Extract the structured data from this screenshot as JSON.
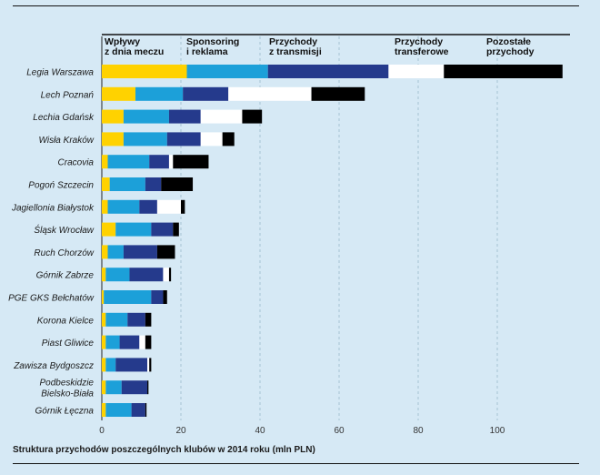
{
  "chart_data": {
    "type": "bar",
    "orientation": "horizontal",
    "stacked": true,
    "title": "Struktura przychodów poszczególnych klubów w 2014 roku (mln PLN)",
    "xlim": [
      0,
      120
    ],
    "xticks": [
      0,
      20,
      40,
      60,
      80,
      100
    ],
    "grid": "vertical dashed",
    "legend_placement": "top",
    "categories": [
      "Legia Warszawa",
      "Lech Poznań",
      "Lechia Gdańsk",
      "Wisła Kraków",
      "Cracovia",
      "Pogoń Szczecin",
      "Jagiellonia Białystok",
      "Śląsk Wrocław",
      "Ruch Chorzów",
      "Górnik Zabrze",
      "PGE GKS Bełchatów",
      "Korona Kielce",
      "Piast Gliwice",
      "Zawisza Bydgoszcz",
      "Podbeskidzie Bielsko-Biała",
      "Górnik Łęczna"
    ],
    "series": [
      {
        "name": "Wpływy z dnia meczu",
        "color": "#ffd200",
        "values": [
          21.5,
          8.5,
          5.5,
          5.5,
          1.5,
          2.0,
          1.5,
          3.5,
          1.5,
          1.0,
          0.5,
          1.0,
          1.0,
          1.0,
          1.0,
          1.0
        ]
      },
      {
        "name": "Sponsoring i reklama",
        "color": "#1ca0d9",
        "values": [
          20.5,
          12.0,
          11.5,
          11.0,
          10.5,
          9.0,
          8.0,
          9.0,
          4.0,
          6.0,
          12.0,
          5.5,
          3.5,
          2.5,
          4.0,
          6.5
        ]
      },
      {
        "name": "Przychody z transmisji",
        "color": "#253a8c",
        "values": [
          30.5,
          11.5,
          8.0,
          8.5,
          5.0,
          4.0,
          4.5,
          5.5,
          8.5,
          8.5,
          3.0,
          4.5,
          5.0,
          8.0,
          6.5,
          3.5
        ]
      },
      {
        "name": "Przychody transferowe",
        "color": "#ffffff",
        "values": [
          14.0,
          21.0,
          10.5,
          5.5,
          1.0,
          0.0,
          6.0,
          0.0,
          0.0,
          1.5,
          0.0,
          0.0,
          1.5,
          0.5,
          0.0,
          0.0
        ]
      },
      {
        "name": "Pozostałe przychody",
        "color": "#000000",
        "values": [
          30.0,
          13.5,
          5.0,
          3.0,
          9.0,
          8.0,
          1.0,
          1.5,
          4.5,
          0.5,
          1.0,
          1.5,
          1.5,
          0.5,
          0.3,
          0.3
        ]
      }
    ],
    "legend_labels": [
      [
        "Wpływy",
        "z dnia meczu"
      ],
      [
        "Sponsoring",
        "i reklama"
      ],
      [
        "Przychody",
        "z transmisji"
      ],
      [
        "Przychody",
        "transferowe"
      ],
      [
        "Pozostałe",
        "przychody"
      ]
    ]
  }
}
